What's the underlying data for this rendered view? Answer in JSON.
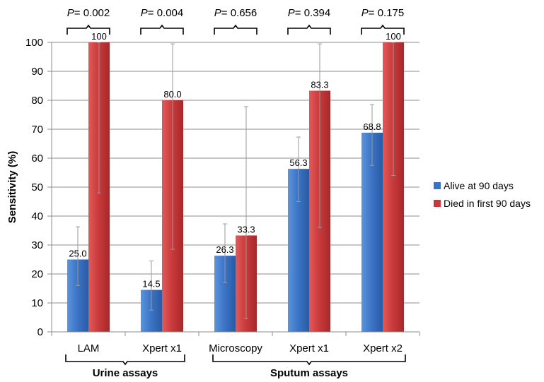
{
  "chart_data": {
    "type": "bar",
    "title": "",
    "xlabel": "",
    "ylabel": "Sensitivity (%)",
    "ylim": [
      0,
      100
    ],
    "yticks": [
      0,
      10,
      20,
      30,
      40,
      50,
      60,
      70,
      80,
      90,
      100
    ],
    "grid": true,
    "legend_position": "right",
    "categories": [
      "LAM",
      "Xpert x1",
      "Microscopy",
      "Xpert x1",
      "Xpert x2"
    ],
    "series": [
      {
        "name": "Alive at 90 days",
        "color": "#3a73c4",
        "values": [
          25.0,
          14.5,
          26.3,
          56.3,
          68.8
        ],
        "labels": [
          "25.0",
          "14.5",
          "26.3",
          "56.3",
          "68.8"
        ],
        "ci_low": [
          16,
          7.5,
          17,
          45,
          57.5
        ],
        "ci_high": [
          36.3,
          24.5,
          37.3,
          67.3,
          78.5
        ]
      },
      {
        "name": "Died in first 90 days",
        "color": "#c8383a",
        "values": [
          100,
          80.0,
          33.3,
          83.3,
          100
        ],
        "labels": [
          "100",
          "80.0",
          "33.3",
          "83.3",
          "100"
        ],
        "ci_low": [
          48,
          28.5,
          4.5,
          36,
          54
        ],
        "ci_high": [
          100,
          99.5,
          77.8,
          99.5,
          100
        ]
      }
    ],
    "p_values": [
      {
        "prefix": "P",
        "text": "= 0.002"
      },
      {
        "prefix": "P",
        "text": "= 0.004"
      },
      {
        "prefix": "P",
        "text": "= 0.656"
      },
      {
        "prefix": "P",
        "text": "= 0.394"
      },
      {
        "prefix": "P",
        "text": "= 0.175"
      }
    ],
    "groups": [
      {
        "label": "Urine assays",
        "category_indices": [
          0,
          1
        ]
      },
      {
        "label": "Sputum assays",
        "category_indices": [
          2,
          3,
          4
        ]
      }
    ]
  }
}
